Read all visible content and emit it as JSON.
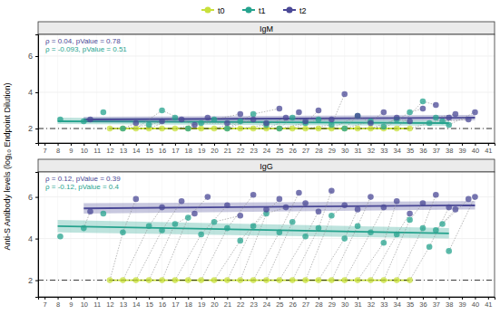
{
  "chart_data": {
    "type": "scatter",
    "legend": "top",
    "grid": true,
    "ylabel": "Anti-S Antibody levels (log₁₀ Endpoint Dilution)",
    "xlim": [
      6.5,
      41.5
    ],
    "xticks": [
      7,
      8,
      9,
      10,
      11,
      12,
      13,
      14,
      15,
      16,
      17,
      18,
      19,
      20,
      21,
      22,
      23,
      24,
      25,
      26,
      27,
      28,
      29,
      30,
      31,
      32,
      33,
      34,
      35,
      36,
      37,
      38,
      39,
      40,
      41
    ],
    "ylim": [
      1.2,
      7.2
    ],
    "yticks": [
      2,
      4,
      6
    ],
    "series": [
      {
        "name": "t0",
        "color": "#c8e03c"
      },
      {
        "name": "t1",
        "color": "#26a38e"
      },
      {
        "name": "t2",
        "color": "#4a4896"
      }
    ],
    "panels": [
      {
        "title": "IgM",
        "hline": 2,
        "annotations": [
          {
            "text": "ρ = 0.04, pValue = 0.78",
            "color": "#4a4896"
          },
          {
            "text": "ρ = -0.093, pValue = 0.51",
            "color": "#26a38e"
          }
        ],
        "series": [
          {
            "x": [
              null,
              null,
              12,
              13,
              14,
              15,
              16,
              17,
              18,
              19,
              20,
              21,
              22,
              23,
              24,
              25,
              26,
              27,
              28,
              29,
              30,
              31,
              32,
              33,
              34,
              35,
              null,
              null,
              null,
              null
            ],
            "values": [
              null,
              null,
              2,
              2,
              2,
              2,
              2,
              2,
              2,
              2,
              2,
              2,
              2,
              2,
              2,
              2,
              2,
              2,
              2,
              2,
              2,
              2,
              2,
              2,
              2,
              2,
              null,
              null,
              null,
              null
            ],
            "fit": {
              "x": [
                12,
                35
              ],
              "values": [
                2,
                2
              ],
              "lower": [
                2,
                2
              ],
              "upper": [
                2,
                2
              ]
            }
          },
          {
            "x": [
              8.2,
              10,
              13,
              15,
              16,
              17,
              18,
              19,
              20,
              21,
              22,
              23,
              24,
              25,
              26,
              27,
              28,
              29,
              30,
              31,
              32,
              33,
              34,
              35,
              36,
              36.5,
              37,
              37.5,
              38,
              11.5
            ],
            "values": [
              2.5,
              2.4,
              2.0,
              2.2,
              3.0,
              2.6,
              2.0,
              2.3,
              2.5,
              2.0,
              2.4,
              2.8,
              2.2,
              2.0,
              2.6,
              2.3,
              2.5,
              2.2,
              2.0,
              2.7,
              2.4,
              2.1,
              2.5,
              2.9,
              3.5,
              2.3,
              2.6,
              2.4,
              2.2,
              2.9
            ],
            "fit": {
              "x": [
                8,
                38
              ],
              "values": [
                2.4,
                2.3
              ],
              "lower": [
                2.25,
                2.15
              ],
              "upper": [
                2.6,
                2.45
              ]
            }
          },
          {
            "x": [
              null,
              10.5,
              14,
              16,
              17.5,
              18.5,
              19.5,
              21,
              22,
              23,
              24,
              25,
              25.5,
              26.5,
              27,
              28,
              29,
              30,
              31,
              32,
              33,
              34,
              35,
              36,
              37,
              38,
              38.5,
              39.5,
              40,
              null
            ],
            "values": [
              null,
              2.5,
              2.3,
              2.4,
              2.5,
              2.2,
              2.6,
              2.3,
              2.8,
              2.5,
              2.3,
              3.1,
              2.6,
              2.9,
              2.4,
              3.0,
              2.5,
              3.9,
              2.7,
              2.3,
              2.9,
              2.6,
              2.4,
              3.1,
              3.3,
              2.6,
              2.8,
              2.5,
              2.9,
              null
            ],
            "fit": {
              "x": [
                10,
                40
              ],
              "values": [
                2.5,
                2.6
              ],
              "lower": [
                2.35,
                2.45
              ],
              "upper": [
                2.65,
                2.75
              ]
            }
          }
        ]
      },
      {
        "title": "IgG",
        "hline": 2,
        "annotations": [
          {
            "text": "ρ = 0.12, pValue = 0.39",
            "color": "#4a4896"
          },
          {
            "text": "ρ = -0.12, pValue = 0.4",
            "color": "#26a38e"
          }
        ],
        "series": [
          {
            "x": [
              null,
              null,
              12,
              13,
              14,
              15,
              16,
              17,
              18,
              19,
              20,
              21,
              22,
              23,
              24,
              25,
              26,
              27,
              28,
              29,
              30,
              31,
              32,
              33,
              34,
              35,
              null,
              null,
              null,
              null
            ],
            "values": [
              null,
              null,
              2,
              2,
              2,
              2,
              2,
              2,
              2,
              2,
              2,
              2,
              2,
              2,
              2,
              2,
              2,
              2,
              2,
              2,
              2,
              2,
              2,
              2,
              2,
              2,
              null,
              null,
              null,
              null
            ],
            "fit": {
              "x": [
                12,
                35
              ],
              "values": [
                2,
                2
              ],
              "lower": [
                2,
                2
              ],
              "upper": [
                2,
                2
              ]
            }
          },
          {
            "x": [
              8.2,
              10,
              13,
              15,
              16,
              17,
              18,
              19,
              20,
              21,
              22,
              23,
              24,
              25,
              26,
              27,
              28,
              29,
              30,
              31,
              32,
              33,
              34,
              35,
              36,
              36.5,
              37,
              37.5,
              38,
              11.5
            ],
            "values": [
              4.1,
              4.5,
              4.3,
              4.6,
              4.4,
              4.7,
              5.0,
              4.2,
              4.8,
              4.5,
              3.9,
              4.6,
              5.2,
              4.3,
              4.8,
              4.1,
              4.5,
              5.1,
              4.0,
              4.6,
              4.3,
              3.8,
              4.2,
              4.9,
              4.5,
              3.6,
              4.4,
              4.7,
              3.4,
              5.2
            ],
            "fit": {
              "x": [
                8,
                38
              ],
              "values": [
                4.6,
                4.25
              ],
              "lower": [
                4.3,
                4.0
              ],
              "upper": [
                4.9,
                4.5
              ]
            }
          },
          {
            "x": [
              null,
              10.5,
              14,
              16,
              17.5,
              18.5,
              19.5,
              21,
              22,
              23,
              24,
              25,
              25.5,
              26.5,
              27,
              28,
              29,
              30,
              31,
              32,
              33,
              34,
              35,
              36,
              37,
              38,
              38.5,
              39.5,
              40,
              null
            ],
            "values": [
              null,
              5.3,
              5.9,
              5.5,
              5.8,
              5.2,
              6.0,
              5.6,
              5.1,
              6.1,
              5.4,
              5.9,
              5.5,
              6.2,
              5.7,
              5.3,
              6.3,
              5.6,
              5.4,
              6.0,
              5.5,
              5.8,
              5.2,
              5.7,
              6.1,
              5.5,
              5.4,
              5.9,
              6.0,
              null
            ],
            "fit": {
              "x": [
                10,
                40
              ],
              "values": [
                5.45,
                5.6
              ],
              "lower": [
                5.2,
                5.4
              ],
              "upper": [
                5.7,
                5.8
              ]
            }
          }
        ]
      }
    ]
  }
}
